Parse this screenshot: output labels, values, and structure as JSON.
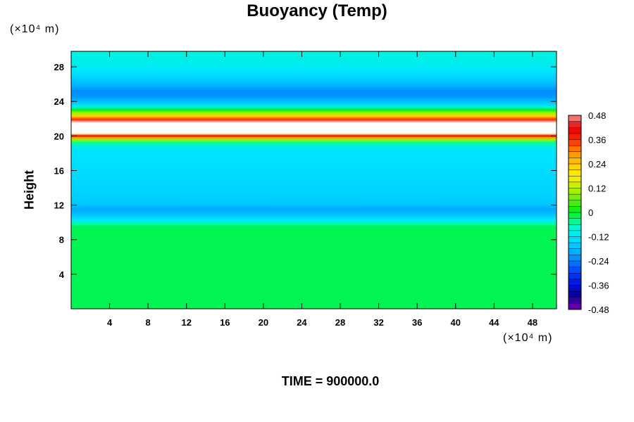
{
  "chart_data": {
    "type": "heatmap",
    "title": "Buoyancy (Temp)",
    "xlabel": "",
    "ylabel": "Height",
    "x_unit": "(×10⁴ m)",
    "y_unit": "(×10⁴ m)",
    "footer": "TIME = 900000.0",
    "x_ticks": [
      4,
      8,
      12,
      16,
      20,
      24,
      28,
      32,
      36,
      40,
      44,
      48
    ],
    "y_ticks": [
      4,
      8,
      12,
      16,
      20,
      24,
      28
    ],
    "xlim": [
      0,
      50.5
    ],
    "ylim": [
      0,
      29.8
    ],
    "colorbar": {
      "min": -0.48,
      "max": 0.48,
      "step": 0.03,
      "tick_labels": [
        "0.48",
        "0.36",
        "0.24",
        "0.12",
        "0",
        "-0.12",
        "-0.24",
        "-0.36",
        "-0.48"
      ],
      "tick_values": [
        0.48,
        0.36,
        0.24,
        0.12,
        0,
        -0.12,
        -0.24,
        -0.36,
        -0.48
      ]
    },
    "profile": {
      "note_height_units": "x10^4 m",
      "heights": [
        0,
        9.5,
        9.8,
        10.3,
        11.0,
        11.5,
        12.0,
        13.0,
        15.0,
        18.5,
        19.2,
        19.6,
        19.85,
        20.0,
        20.15,
        20.3,
        21.5,
        21.9,
        22.3,
        22.7,
        23.0,
        23.4,
        24.0,
        24.6,
        25.2,
        25.8,
        26.5,
        27.5,
        28.5,
        29.8
      ],
      "values": [
        -0.02,
        -0.02,
        -0.05,
        -0.12,
        -0.18,
        -0.2,
        -0.17,
        -0.15,
        -0.14,
        -0.12,
        -0.05,
        0.1,
        0.3,
        0.42,
        0.3,
        0.6,
        0.6,
        0.36,
        0.22,
        0.1,
        0.0,
        -0.1,
        -0.18,
        -0.22,
        -0.23,
        -0.19,
        -0.16,
        -0.12,
        -0.1,
        -0.09
      ]
    }
  }
}
